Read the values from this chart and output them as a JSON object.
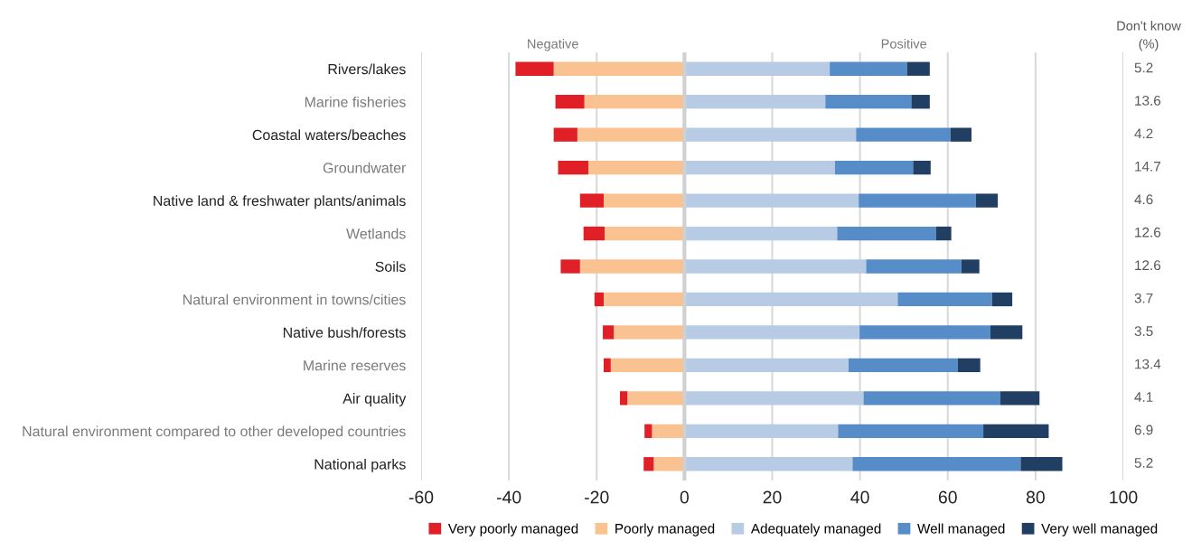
{
  "chart_data": {
    "type": "bar",
    "orientation": "horizontal",
    "stacked": true,
    "categories": [
      "Rivers/lakes",
      "Marine fisheries",
      "Coastal waters/beaches",
      "Groundwater",
      "Native land & freshwater plants/animals",
      "Wetlands",
      "Soils",
      "Natural environment in towns/cities",
      "Native bush/forests",
      "Marine reserves",
      "Air quality",
      "Natural environment compared to other developed countries",
      "National parks"
    ],
    "series": [
      {
        "name": "Poorly managed",
        "color": "#f9c290",
        "values": [
          -29.8,
          -22.8,
          -24.4,
          -21.9,
          -18.4,
          -18.2,
          -23.8,
          -18.4,
          -16.1,
          -16.8,
          -13.0,
          -7.4,
          -7.0
        ]
      },
      {
        "name": "Very poorly managed",
        "color": "#e02026",
        "values": [
          -8.7,
          -6.6,
          -5.4,
          -6.9,
          -5.4,
          -4.8,
          -4.4,
          -2.1,
          -2.5,
          -1.6,
          -1.7,
          -1.7,
          -2.3
        ]
      },
      {
        "name": "Adequately managed",
        "color": "#b7cbe4",
        "values": [
          33.1,
          32.1,
          39.1,
          34.3,
          39.7,
          34.8,
          41.4,
          48.6,
          39.9,
          37.4,
          40.8,
          35.0,
          38.3
        ]
      },
      {
        "name": "Well managed",
        "color": "#568cc8",
        "values": [
          17.6,
          19.6,
          21.5,
          17.8,
          26.7,
          22.5,
          21.7,
          21.5,
          29.8,
          24.9,
          31.2,
          33.1,
          38.3
        ]
      },
      {
        "name": "Very well managed",
        "color": "#203f62",
        "values": [
          5.2,
          4.2,
          4.8,
          4.0,
          5.0,
          3.5,
          4.1,
          4.6,
          7.3,
          5.1,
          8.9,
          14.9,
          9.5
        ]
      }
    ],
    "xlim": [
      -60,
      100
    ],
    "xticks": [
      -60,
      -40,
      -20,
      0,
      20,
      40,
      60,
      80,
      100
    ],
    "grid": "x",
    "legend": "bottom",
    "ref_lines": [
      {
        "axis": "x",
        "value": 0,
        "color": "#d0d0d0"
      }
    ],
    "annotations": [
      "Negative",
      "Positive",
      "Don't know\n(%)",
      "5.2",
      "13.6",
      "4.2",
      "14.7",
      "4.6",
      "12.6",
      "12.6",
      "3.7",
      "3.5",
      "13.4",
      "4.1",
      "6.9",
      "5.2"
    ]
  }
}
